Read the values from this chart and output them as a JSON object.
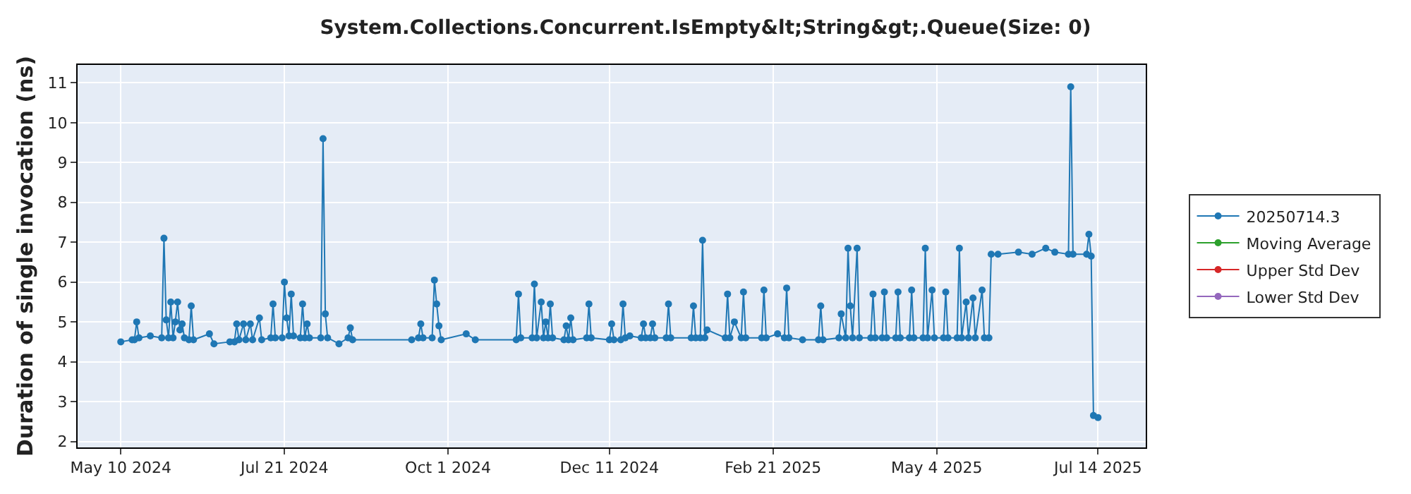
{
  "chart_data": {
    "type": "line",
    "title": "System.Collections.Concurrent.IsEmpty&lt;String&gt;.Queue(Size: 0)",
    "ylabel": "Duration of single invocation (ns)",
    "xlim": [
      "2024-04-21",
      "2025-08-04"
    ],
    "ylim": [
      1.85,
      11.45
    ],
    "xticks": [
      {
        "value": "2024-05-10",
        "label": "May 10 2024"
      },
      {
        "value": "2024-07-21",
        "label": "Jul 21 2024"
      },
      {
        "value": "2024-10-01",
        "label": "Oct 1 2024"
      },
      {
        "value": "2024-12-11",
        "label": "Dec 11 2024"
      },
      {
        "value": "2025-02-21",
        "label": "Feb 21 2025"
      },
      {
        "value": "2025-05-04",
        "label": "May 4 2025"
      },
      {
        "value": "2025-07-14",
        "label": "Jul 14 2025"
      }
    ],
    "yticks": [
      2,
      3,
      4,
      5,
      6,
      7,
      8,
      9,
      10,
      11
    ],
    "grid": true,
    "legend": "right",
    "marker": "circle",
    "line_style": "solid",
    "series": [
      {
        "name": "20250714.3",
        "color": "#1f77b4",
        "x": [
          "2024-05-10",
          "2024-05-15",
          "2024-05-16",
          "2024-05-17",
          "2024-05-18",
          "2024-05-23",
          "2024-05-28",
          "2024-05-29",
          "2024-05-30",
          "2024-05-31",
          "2024-06-01",
          "2024-06-02",
          "2024-06-03",
          "2024-06-04",
          "2024-06-05",
          "2024-06-06",
          "2024-06-07",
          "2024-06-09",
          "2024-06-10",
          "2024-06-11",
          "2024-06-18",
          "2024-06-20",
          "2024-06-27",
          "2024-06-29",
          "2024-06-30",
          "2024-07-01",
          "2024-07-03",
          "2024-07-04",
          "2024-07-06",
          "2024-07-07",
          "2024-07-10",
          "2024-07-11",
          "2024-07-15",
          "2024-07-16",
          "2024-07-17",
          "2024-07-20",
          "2024-07-21",
          "2024-07-22",
          "2024-07-23",
          "2024-07-24",
          "2024-07-25",
          "2024-07-28",
          "2024-07-29",
          "2024-07-30",
          "2024-07-31",
          "2024-08-01",
          "2024-08-06",
          "2024-08-07",
          "2024-08-08",
          "2024-08-09",
          "2024-08-14",
          "2024-08-18",
          "2024-08-19",
          "2024-08-20",
          "2024-09-15",
          "2024-09-18",
          "2024-09-19",
          "2024-09-20",
          "2024-09-24",
          "2024-09-25",
          "2024-09-26",
          "2024-09-27",
          "2024-09-28",
          "2024-10-09",
          "2024-10-13",
          "2024-10-31",
          "2024-11-01",
          "2024-11-02",
          "2024-11-07",
          "2024-11-08",
          "2024-11-09",
          "2024-11-11",
          "2024-11-12",
          "2024-11-13",
          "2024-11-14",
          "2024-11-15",
          "2024-11-16",
          "2024-11-21",
          "2024-11-22",
          "2024-11-23",
          "2024-11-24",
          "2024-11-25",
          "2024-12-01",
          "2024-12-02",
          "2024-12-03",
          "2024-12-11",
          "2024-12-12",
          "2024-12-13",
          "2024-12-16",
          "2024-12-17",
          "2024-12-18",
          "2024-12-20",
          "2024-12-25",
          "2024-12-26",
          "2024-12-27",
          "2024-12-29",
          "2024-12-30",
          "2024-12-31",
          "2025-01-05",
          "2025-01-06",
          "2025-01-07",
          "2025-01-16",
          "2025-01-17",
          "2025-01-18",
          "2025-01-20",
          "2025-01-21",
          "2025-01-22",
          "2025-01-23",
          "2025-01-31",
          "2025-02-01",
          "2025-02-02",
          "2025-02-04",
          "2025-02-07",
          "2025-02-08",
          "2025-02-09",
          "2025-02-16",
          "2025-02-17",
          "2025-02-18",
          "2025-02-23",
          "2025-02-26",
          "2025-02-27",
          "2025-02-28",
          "2025-03-06",
          "2025-03-13",
          "2025-03-14",
          "2025-03-15",
          "2025-03-22",
          "2025-03-23",
          "2025-03-25",
          "2025-03-26",
          "2025-03-27",
          "2025-03-28",
          "2025-03-30",
          "2025-03-31",
          "2025-04-05",
          "2025-04-06",
          "2025-04-07",
          "2025-04-10",
          "2025-04-11",
          "2025-04-12",
          "2025-04-16",
          "2025-04-17",
          "2025-04-18",
          "2025-04-22",
          "2025-04-23",
          "2025-04-24",
          "2025-04-28",
          "2025-04-29",
          "2025-04-30",
          "2025-05-02",
          "2025-05-03",
          "2025-05-07",
          "2025-05-08",
          "2025-05-09",
          "2025-05-13",
          "2025-05-14",
          "2025-05-15",
          "2025-05-17",
          "2025-05-18",
          "2025-05-20",
          "2025-05-21",
          "2025-05-24",
          "2025-05-25",
          "2025-05-27",
          "2025-05-28",
          "2025-05-31",
          "2025-06-09",
          "2025-06-15",
          "2025-06-21",
          "2025-06-25",
          "2025-07-01",
          "2025-07-02",
          "2025-07-03",
          "2025-07-09",
          "2025-07-10",
          "2025-07-11",
          "2025-07-12",
          "2025-07-14"
        ],
        "values": [
          4.5,
          4.55,
          4.55,
          5.0,
          4.6,
          4.65,
          4.6,
          7.1,
          5.05,
          4.6,
          5.5,
          4.6,
          5.0,
          5.5,
          4.8,
          4.95,
          4.6,
          4.55,
          5.4,
          4.55,
          4.7,
          4.45,
          4.5,
          4.5,
          4.95,
          4.55,
          4.95,
          4.55,
          4.95,
          4.55,
          5.1,
          4.55,
          4.6,
          5.45,
          4.6,
          4.6,
          6.0,
          5.1,
          4.65,
          5.7,
          4.65,
          4.6,
          5.45,
          4.6,
          4.95,
          4.6,
          4.6,
          9.6,
          5.2,
          4.6,
          4.45,
          4.6,
          4.85,
          4.55,
          4.55,
          4.6,
          4.95,
          4.6,
          4.6,
          6.05,
          5.45,
          4.9,
          4.55,
          4.7,
          4.55,
          4.55,
          5.7,
          4.6,
          4.6,
          5.95,
          4.6,
          5.5,
          4.6,
          5.0,
          4.6,
          5.45,
          4.6,
          4.55,
          4.9,
          4.55,
          5.1,
          4.55,
          4.6,
          5.45,
          4.6,
          4.55,
          4.95,
          4.55,
          4.55,
          5.45,
          4.6,
          4.65,
          4.6,
          4.95,
          4.6,
          4.6,
          4.95,
          4.6,
          4.6,
          5.45,
          4.6,
          4.6,
          5.4,
          4.6,
          4.6,
          7.05,
          4.6,
          4.8,
          4.6,
          5.7,
          4.6,
          5.0,
          4.6,
          5.75,
          4.6,
          4.6,
          5.8,
          4.6,
          4.7,
          4.6,
          5.85,
          4.6,
          4.55,
          4.55,
          5.4,
          4.55,
          4.6,
          5.2,
          4.6,
          6.85,
          5.4,
          4.6,
          6.85,
          4.6,
          4.6,
          5.7,
          4.6,
          4.6,
          5.75,
          4.6,
          4.6,
          5.75,
          4.6,
          4.6,
          5.8,
          4.6,
          4.6,
          6.85,
          4.6,
          5.8,
          4.6,
          4.6,
          5.75,
          4.6,
          4.6,
          6.85,
          4.6,
          5.5,
          4.6,
          5.6,
          4.6,
          5.8,
          4.6,
          4.6,
          6.7,
          6.7,
          6.75,
          6.7,
          6.85,
          6.75,
          6.7,
          10.9,
          6.7,
          6.7,
          7.2,
          6.65,
          2.65,
          2.6
        ]
      },
      {
        "name": "Moving Average",
        "color": "#2ca02c"
      },
      {
        "name": "Upper Std Dev",
        "color": "#d62728"
      },
      {
        "name": "Lower Std Dev",
        "color": "#9467bd"
      }
    ]
  }
}
